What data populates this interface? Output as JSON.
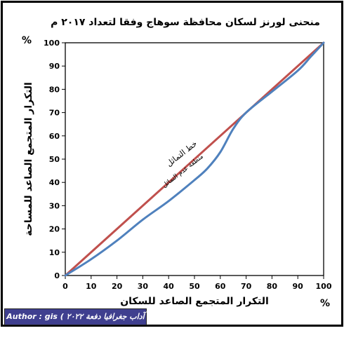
{
  "chart_data": {
    "type": "line",
    "title": "منحنى لورنز لسكان محافظة سوهاج وفقا لتعداد ٢٠١٧ م",
    "xlabel": "التكرار المتجمع الصاعد للسكان",
    "ylabel": "التكرار المتجمع الصاعد للمساحة",
    "x_unit": "%",
    "y_unit": "%",
    "xlim": [
      0,
      100
    ],
    "ylim": [
      0,
      100
    ],
    "xticks": [
      "0",
      "10",
      "20",
      "30",
      "40",
      "50",
      "60",
      "70",
      "80",
      "90",
      "100"
    ],
    "yticks": [
      "0",
      "10",
      "20",
      "30",
      "40",
      "50",
      "60",
      "70",
      "80",
      "90",
      "100"
    ],
    "grid": false,
    "series": [
      {
        "name": "خط التماثل",
        "color": "#c0504d",
        "x": [
          0,
          100
        ],
        "y": [
          0,
          100
        ]
      },
      {
        "name": "منطقة عدم التماثل",
        "color": "#4f81bd",
        "x": [
          0,
          10,
          20,
          30,
          40,
          50,
          55,
          60,
          65,
          70,
          80,
          90,
          95,
          100
        ],
        "y": [
          0,
          7,
          15,
          24,
          32,
          41,
          46,
          53,
          63,
          70,
          79,
          88,
          94,
          100
        ]
      }
    ],
    "annotations": [
      "خط التماثل",
      "منطقة عدم التماثل"
    ]
  },
  "author": "Author : gis ( آداب جغرافيا دفعة ٢٠٢٢ )"
}
